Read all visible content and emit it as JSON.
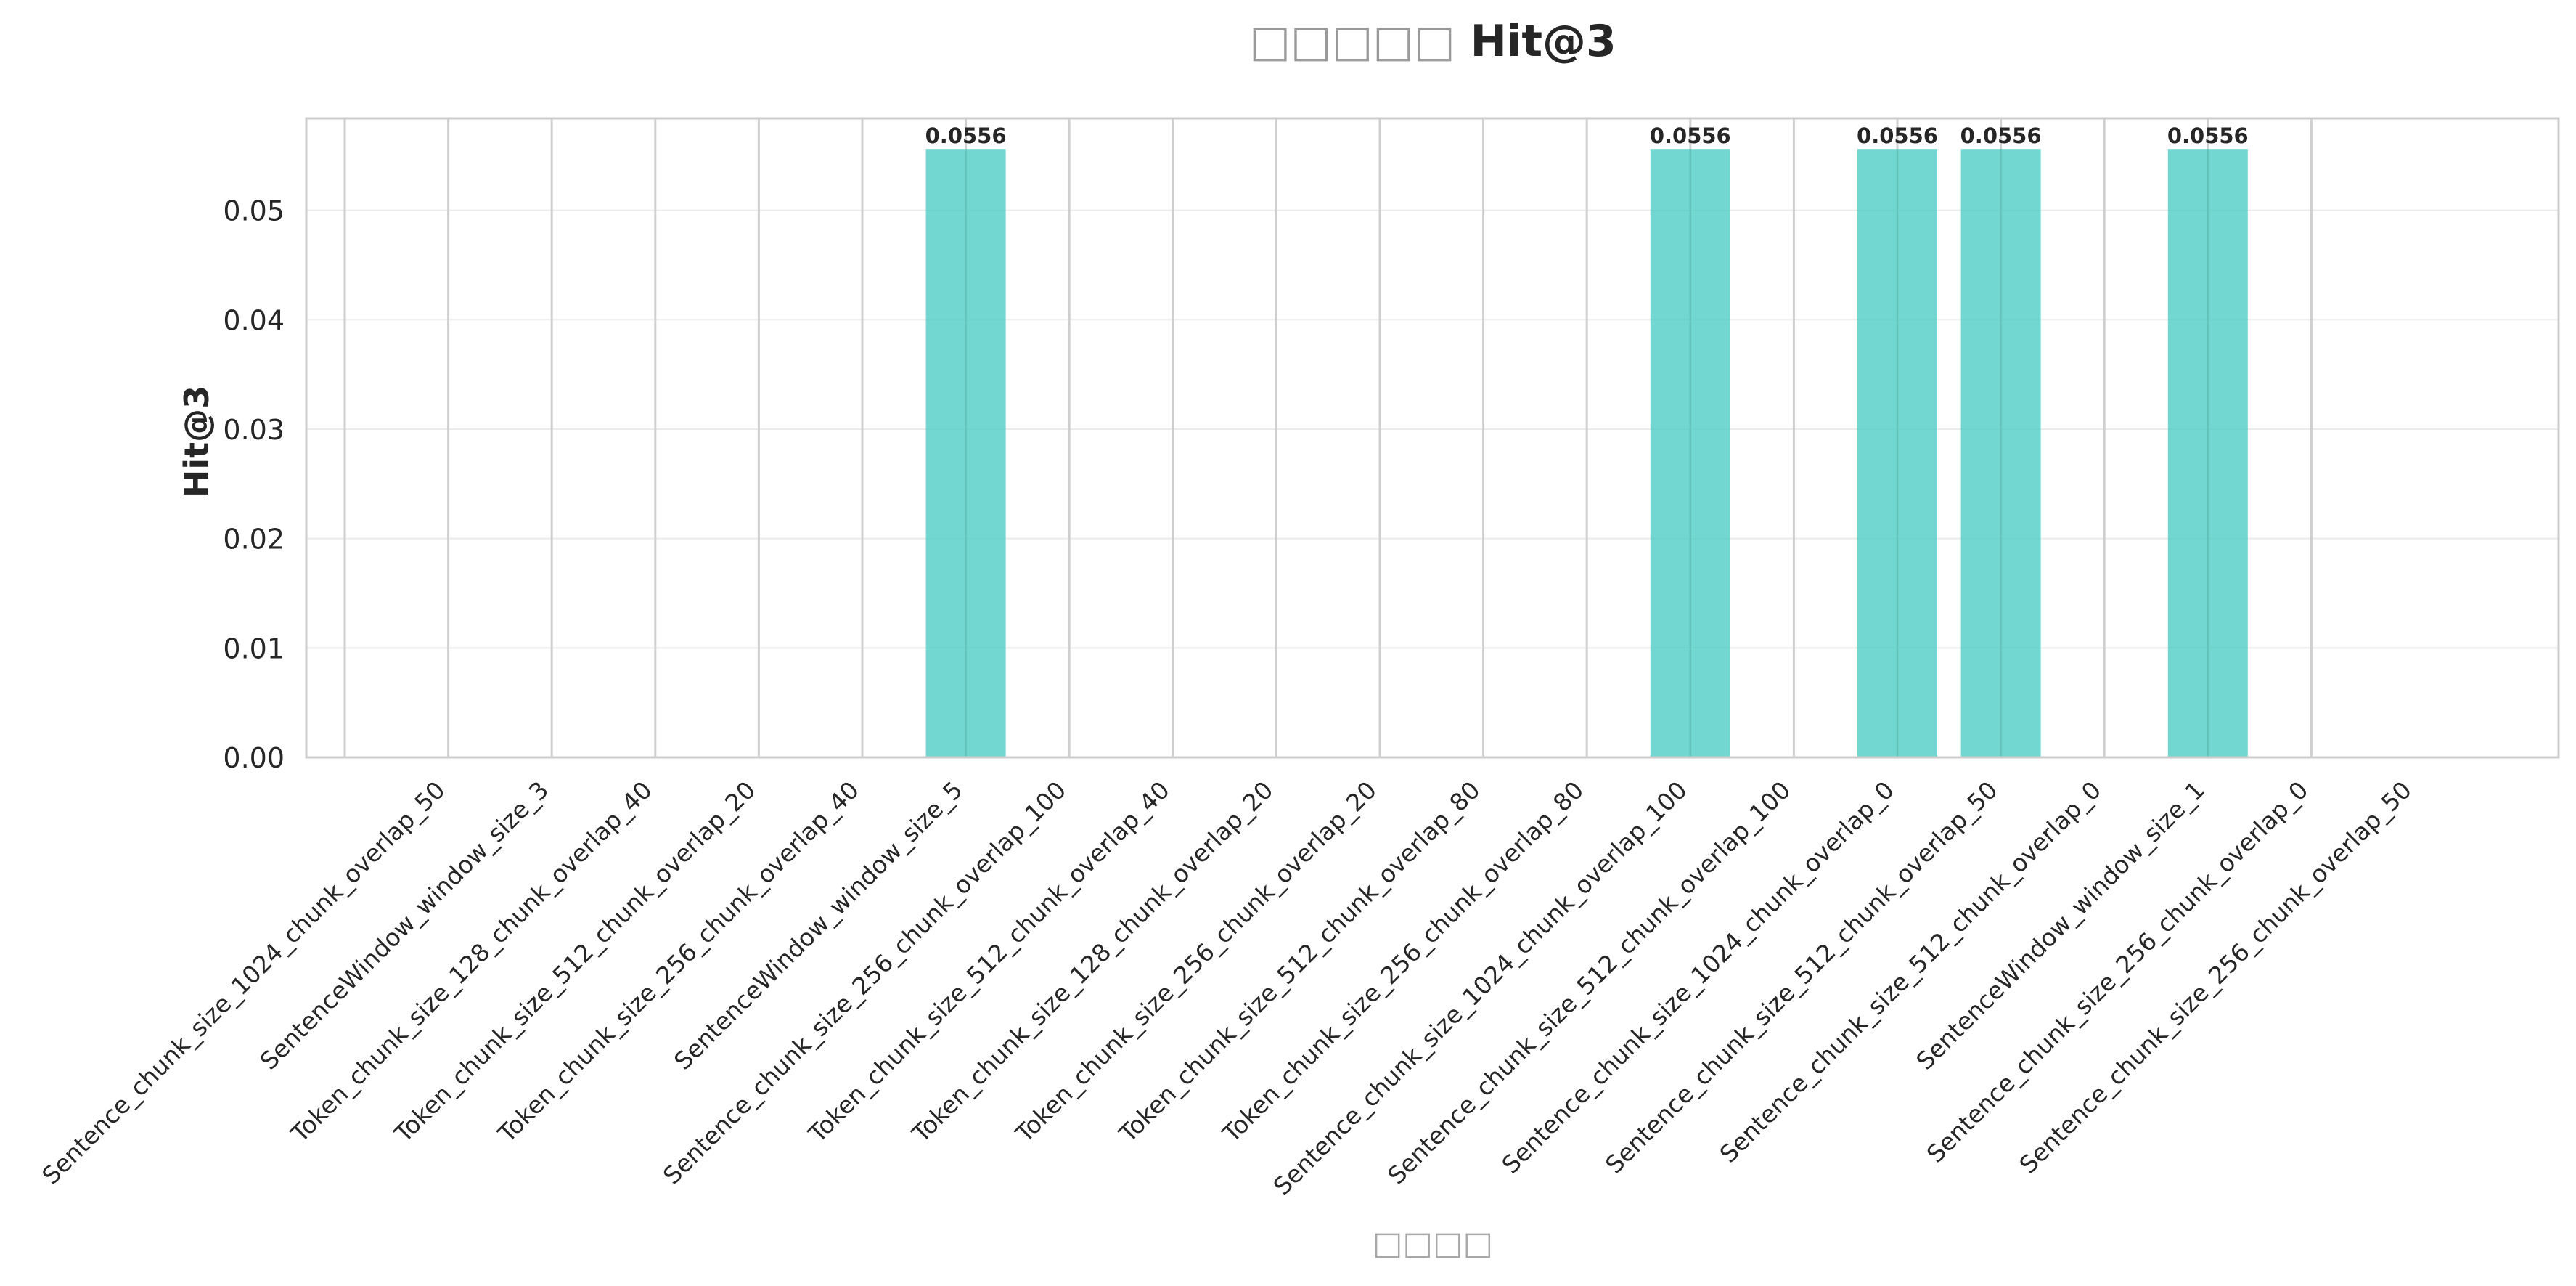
{
  "chart_data": {
    "type": "bar",
    "title": "□□□□□ Hit@3",
    "xlabel": "□□□□",
    "ylabel": "Hit@3",
    "ylim": [
      0,
      0.0584
    ],
    "yticks": [
      "0.00",
      "0.01",
      "0.02",
      "0.03",
      "0.04",
      "0.05"
    ],
    "grid": true,
    "bar_color": "#4ecdc4",
    "categories": [
      "Sentence_chunk_size_1024_chunk_overlap_50",
      "SentenceWindow_window_size_3",
      "Token_chunk_size_128_chunk_overlap_40",
      "Token_chunk_size_512_chunk_overlap_20",
      "Token_chunk_size_256_chunk_overlap_40",
      "SentenceWindow_window_size_5",
      "Sentence_chunk_size_256_chunk_overlap_100",
      "Token_chunk_size_512_chunk_overlap_40",
      "Token_chunk_size_128_chunk_overlap_20",
      "Token_chunk_size_256_chunk_overlap_20",
      "Token_chunk_size_512_chunk_overlap_80",
      "Token_chunk_size_256_chunk_overlap_80",
      "Sentence_chunk_size_1024_chunk_overlap_100",
      "Sentence_chunk_size_512_chunk_overlap_100",
      "Sentence_chunk_size_1024_chunk_overlap_0",
      "Sentence_chunk_size_512_chunk_overlap_50",
      "Sentence_chunk_size_512_chunk_overlap_0",
      "SentenceWindow_window_size_1",
      "Sentence_chunk_size_256_chunk_overlap_0",
      "Sentence_chunk_size_256_chunk_overlap_50"
    ],
    "values": [
      0,
      0,
      0,
      0,
      0,
      0,
      0.0556,
      0,
      0,
      0,
      0,
      0,
      0,
      0.0556,
      0,
      0.0556,
      0.0556,
      0,
      0.0556,
      0
    ],
    "data_labels": [
      "",
      "",
      "",
      "",
      "",
      "",
      "0.0556",
      "",
      "",
      "",
      "",
      "",
      "",
      "0.0556",
      "",
      "0.0556",
      "0.0556",
      "",
      "0.0556",
      ""
    ]
  }
}
